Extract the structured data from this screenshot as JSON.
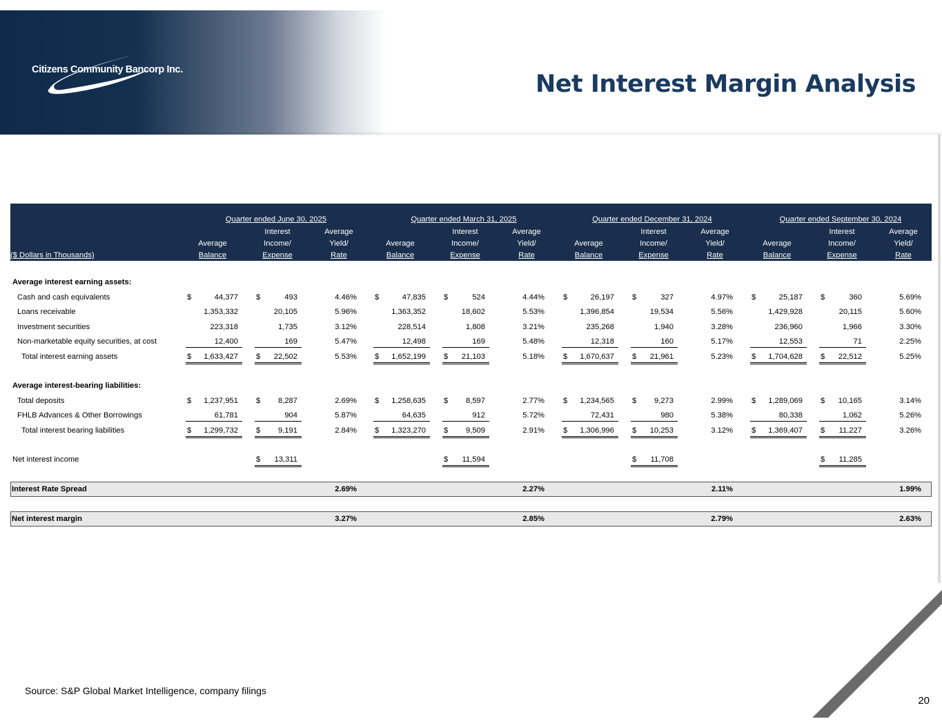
{
  "header": {
    "company": "Citizens Community Bancorp Inc.",
    "title": "Net Interest Margin Analysis"
  },
  "table": {
    "units_label": "($ Dollars in Thousands)",
    "quarters": [
      "Quarter ended June 30,  2025",
      "Quarter ended March 31,  2025",
      "Quarter ended December 31,  2024",
      "Quarter ended September 30,  2024"
    ],
    "col_headers": {
      "balance": [
        "",
        "Average",
        "Balance"
      ],
      "income": [
        "Interest",
        "Income/",
        "Expense"
      ],
      "yield": [
        "Average",
        "Yield/",
        "Rate"
      ]
    },
    "assets_heading": "Average interest earning assets:",
    "liabilities_heading": "Average interest-bearing liabilities:",
    "asset_rows": [
      {
        "label": "Cash and cash equivalents",
        "dollar": true,
        "cells": [
          [
            "44,377",
            "493",
            "4.46%"
          ],
          [
            "47,835",
            "524",
            "4.44%"
          ],
          [
            "26,197",
            "327",
            "4.97%"
          ],
          [
            "25,187",
            "360",
            "5.69%"
          ]
        ]
      },
      {
        "label": "Loans receivable",
        "dollar": false,
        "cells": [
          [
            "1,353,332",
            "20,105",
            "5.96%"
          ],
          [
            "1,363,352",
            "18,602",
            "5.53%"
          ],
          [
            "1,396,854",
            "19,534",
            "5.56%"
          ],
          [
            "1,429,928",
            "20,115",
            "5.60%"
          ]
        ]
      },
      {
        "label": "Investment securities",
        "dollar": false,
        "cells": [
          [
            "223,318",
            "1,735",
            "3.12%"
          ],
          [
            "228,514",
            "1,808",
            "3.21%"
          ],
          [
            "235,268",
            "1,940",
            "3.28%"
          ],
          [
            "236,960",
            "1,966",
            "3.30%"
          ]
        ]
      },
      {
        "label": "Non-marketable equity securities, at cost",
        "dollar": false,
        "underline": true,
        "cells": [
          [
            "12,400",
            "169",
            "5.47%"
          ],
          [
            "12,498",
            "169",
            "5.48%"
          ],
          [
            "12,318",
            "160",
            "5.17%"
          ],
          [
            "12,553",
            "71",
            "2.25%"
          ]
        ]
      },
      {
        "label": "Total interest earning assets",
        "dollar": true,
        "total": true,
        "cells": [
          [
            "1,633,427",
            "22,502",
            "5.53%"
          ],
          [
            "1,652,199",
            "21,103",
            "5.18%"
          ],
          [
            "1,670,637",
            "21,961",
            "5.23%"
          ],
          [
            "1,704,628",
            "22,512",
            "5.25%"
          ]
        ]
      }
    ],
    "liability_rows": [
      {
        "label": "Total deposits",
        "dollar": true,
        "cells": [
          [
            "1,237,951",
            "8,287",
            "2.69%"
          ],
          [
            "1,258,635",
            "8,597",
            "2.77%"
          ],
          [
            "1,234,565",
            "9,273",
            "2.99%"
          ],
          [
            "1,289,069",
            "10,165",
            "3.14%"
          ]
        ]
      },
      {
        "label": "FHLB Advances & Other Borrowings",
        "dollar": false,
        "underline": true,
        "cells": [
          [
            "61,781",
            "904",
            "5.87%"
          ],
          [
            "64,635",
            "912",
            "5.72%"
          ],
          [
            "72,431",
            "980",
            "5.38%"
          ],
          [
            "80,338",
            "1,062",
            "5.26%"
          ]
        ]
      },
      {
        "label": "Total interest bearing liabilities",
        "dollar": true,
        "total": true,
        "cells": [
          [
            "1,299,732",
            "9,191",
            "2.84%"
          ],
          [
            "1,323,270",
            "9,509",
            "2.91%"
          ],
          [
            "1,306,996",
            "10,253",
            "3.12%"
          ],
          [
            "1,369,407",
            "11,227",
            "3.26%"
          ]
        ]
      }
    ],
    "net_interest_income": {
      "label": "Net interest income",
      "values": [
        "13,311",
        "11,594",
        "11,708",
        "11,285"
      ]
    },
    "interest_rate_spread": {
      "label": "Interest Rate Spread",
      "values": [
        "2.69%",
        "2.27%",
        "2.11%",
        "1.99%"
      ]
    },
    "net_interest_margin": {
      "label": "Net interest margin",
      "values": [
        "3.27%",
        "2.85%",
        "2.79%",
        "2.63%"
      ]
    },
    "currency_symbol": "$"
  },
  "footer": {
    "source": "Source: S&P Global Market Intelligence, company filings",
    "page": "20"
  }
}
